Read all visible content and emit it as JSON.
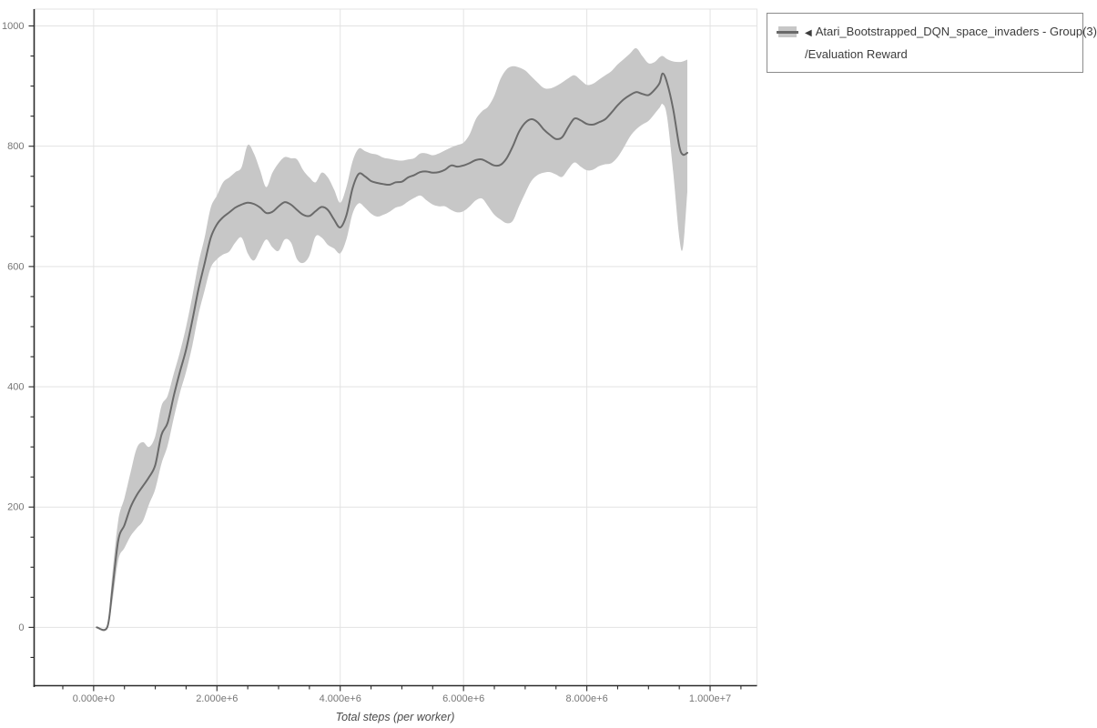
{
  "legend": {
    "arrow_icon": "◀",
    "series_label": "Atari_Bootstrapped_DQN_space_invaders - Group(3)",
    "metric_label": "/Evaluation Reward"
  },
  "axes": {
    "x": {
      "title": "Total steps (per worker)",
      "ticks": [
        {
          "value": 0,
          "label": "0.000e+0"
        },
        {
          "value": 2000000,
          "label": "2.000e+6"
        },
        {
          "value": 4000000,
          "label": "4.000e+6"
        },
        {
          "value": 6000000,
          "label": "6.000e+6"
        },
        {
          "value": 8000000,
          "label": "8.000e+6"
        },
        {
          "value": 10000000,
          "label": "1.000e+7"
        }
      ],
      "minor_step": 500000
    },
    "y": {
      "title": "",
      "ticks": [
        {
          "value": 0,
          "label": "0"
        },
        {
          "value": 200,
          "label": "200"
        },
        {
          "value": 400,
          "label": "400"
        },
        {
          "value": 600,
          "label": "600"
        },
        {
          "value": 800,
          "label": "800"
        },
        {
          "value": 1000,
          "label": "1000"
        }
      ],
      "minor_step": 50
    }
  },
  "style": {
    "background": "#ffffff",
    "grid_color": "#e3e3e3",
    "axis_color": "#2b2b2b",
    "tick_label_color": "#767676",
    "axis_title_color": "#4a4a4a",
    "legend_border_color": "#8c8c8c",
    "legend_text_color": "#3c3c3c"
  },
  "chart_data": {
    "type": "line",
    "title": "",
    "xlabel": "Total steps (per worker)",
    "ylabel": "",
    "xlim": [
      -965000,
      10760000
    ],
    "ylim": [
      -97,
      1028
    ],
    "x_tick_range": [
      0,
      10000000
    ],
    "y_tick_range": [
      0,
      1000
    ],
    "grid": true,
    "legend_position": "outside-top-right",
    "series": [
      {
        "name": "Atari_Bootstrapped_DQN_space_invaders - Group(3)/Evaluation Reward",
        "line_color": "#6a6a6a",
        "band_color": "#c7c7c7",
        "x": [
          50000,
          220000,
          300000,
          400000,
          500000,
          600000,
          700000,
          800000,
          900000,
          1000000,
          1100000,
          1200000,
          1300000,
          1400000,
          1500000,
          1600000,
          1700000,
          1800000,
          1900000,
          2000000,
          2100000,
          2200000,
          2300000,
          2400000,
          2500000,
          2600000,
          2700000,
          2800000,
          2900000,
          3000000,
          3100000,
          3200000,
          3300000,
          3400000,
          3500000,
          3600000,
          3700000,
          3800000,
          3900000,
          4000000,
          4100000,
          4200000,
          4300000,
          4400000,
          4500000,
          4600000,
          4700000,
          4800000,
          4900000,
          5000000,
          5100000,
          5200000,
          5300000,
          5400000,
          5500000,
          5600000,
          5700000,
          5800000,
          5900000,
          6000000,
          6100000,
          6200000,
          6300000,
          6400000,
          6500000,
          6600000,
          6700000,
          6800000,
          6900000,
          7000000,
          7100000,
          7200000,
          7300000,
          7400000,
          7500000,
          7600000,
          7700000,
          7800000,
          7900000,
          8000000,
          8100000,
          8200000,
          8300000,
          8400000,
          8500000,
          8600000,
          8700000,
          8800000,
          8900000,
          9000000,
          9100000,
          9180000,
          9230000,
          9300000,
          9400000,
          9500000,
          9560000,
          9630000
        ],
        "mean": [
          0,
          0,
          60,
          145,
          170,
          200,
          220,
          235,
          250,
          270,
          320,
          340,
          385,
          425,
          462,
          510,
          562,
          605,
          648,
          670,
          682,
          690,
          698,
          703,
          706,
          704,
          698,
          689,
          691,
          700,
          707,
          703,
          694,
          686,
          684,
          692,
          699,
          694,
          678,
          665,
          685,
          730,
          754,
          750,
          742,
          739,
          737,
          736,
          740,
          741,
          748,
          752,
          757,
          758,
          756,
          757,
          761,
          768,
          766,
          768,
          772,
          777,
          778,
          773,
          768,
          769,
          780,
          800,
          824,
          839,
          845,
          840,
          828,
          819,
          812,
          815,
          832,
          846,
          843,
          837,
          836,
          840,
          845,
          856,
          868,
          878,
          885,
          890,
          887,
          885,
          894,
          905,
          921,
          906,
          862,
          800,
          786,
          789
        ],
        "lower": [
          0,
          0,
          40,
          112,
          132,
          152,
          165,
          177,
          205,
          230,
          272,
          302,
          348,
          390,
          425,
          468,
          520,
          560,
          598,
          612,
          620,
          625,
          640,
          648,
          622,
          610,
          628,
          645,
          632,
          626,
          645,
          640,
          612,
          606,
          618,
          650,
          648,
          636,
          630,
          622,
          645,
          688,
          705,
          698,
          688,
          683,
          686,
          691,
          698,
          701,
          708,
          714,
          718,
          710,
          703,
          700,
          700,
          694,
          690,
          692,
          700,
          710,
          713,
          700,
          686,
          678,
          672,
          676,
          700,
          722,
          742,
          752,
          756,
          757,
          753,
          749,
          762,
          773,
          766,
          760,
          761,
          767,
          770,
          772,
          782,
          798,
          816,
          828,
          836,
          842,
          854,
          864,
          870,
          850,
          758,
          648,
          632,
          724
        ],
        "upper": [
          0,
          0,
          85,
          178,
          215,
          258,
          298,
          308,
          300,
          318,
          368,
          385,
          422,
          458,
          500,
          550,
          605,
          648,
          698,
          718,
          740,
          748,
          757,
          765,
          802,
          788,
          760,
          732,
          756,
          772,
          782,
          780,
          778,
          760,
          748,
          740,
          756,
          748,
          728,
          706,
          732,
          775,
          796,
          792,
          788,
          786,
          781,
          779,
          777,
          776,
          778,
          780,
          788,
          788,
          785,
          788,
          793,
          798,
          802,
          806,
          820,
          845,
          858,
          866,
          884,
          912,
          928,
          933,
          931,
          926,
          916,
          906,
          897,
          896,
          900,
          906,
          913,
          918,
          910,
          902,
          904,
          911,
          918,
          925,
          936,
          945,
          954,
          963,
          950,
          938,
          940,
          948,
          950,
          945,
          941,
          940,
          941,
          944
        ]
      }
    ]
  }
}
